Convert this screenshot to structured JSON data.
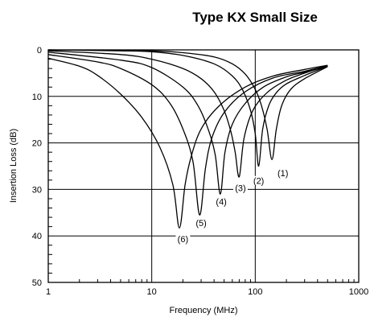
{
  "chart_data": {
    "type": "line",
    "title": "Type KX Small Size",
    "xlabel": "Frequency (MHz)",
    "ylabel": "Insertion Loss (dB)",
    "x_scale": "log",
    "xlim": [
      1,
      1000
    ],
    "ylim": [
      0,
      50
    ],
    "y_inverted": true,
    "grid": true,
    "x_ticks": [
      1,
      10,
      100,
      1000
    ],
    "x_tick_labels": [
      "1",
      "10",
      "100",
      "1000"
    ],
    "y_ticks": [
      0,
      10,
      20,
      30,
      40,
      50
    ],
    "y_tick_labels": [
      "0",
      "10",
      "20",
      "30",
      "40",
      "50"
    ],
    "series": [
      {
        "name": "(1)",
        "x": [
          1,
          5,
          10,
          20,
          40,
          60,
          80,
          100,
          115,
          130,
          145,
          160,
          180,
          220,
          300,
          500
        ],
        "y": [
          0.0,
          0.1,
          0.2,
          0.6,
          1.5,
          3.0,
          5.2,
          8.5,
          12.0,
          17.0,
          23.6,
          17.0,
          12.0,
          8.5,
          6.2,
          3.6
        ]
      },
      {
        "name": "(2)",
        "x": [
          1,
          5,
          10,
          20,
          40,
          60,
          75,
          90,
          100,
          108,
          118,
          135,
          160,
          200,
          300,
          500
        ],
        "y": [
          0.0,
          0.2,
          0.4,
          1.2,
          3.0,
          5.6,
          8.5,
          13.0,
          18.0,
          25.0,
          17.0,
          12.0,
          9.2,
          7.3,
          5.5,
          3.5
        ]
      },
      {
        "name": "(3)",
        "x": [
          1,
          5,
          10,
          20,
          30,
          40,
          50,
          58,
          64,
          70,
          78,
          95,
          130,
          200,
          300,
          500
        ],
        "y": [
          0.2,
          1.0,
          2.0,
          4.0,
          6.2,
          9.0,
          13.0,
          17.5,
          22.0,
          27.3,
          19.0,
          13.0,
          9.2,
          6.5,
          5.0,
          3.4
        ]
      },
      {
        "name": "(4)",
        "x": [
          1,
          5,
          10,
          20,
          28,
          35,
          41,
          46,
          51,
          60,
          80,
          120,
          200,
          300,
          500
        ],
        "y": [
          0.5,
          2.2,
          3.8,
          8.0,
          12.0,
          17.0,
          22.5,
          31.0,
          22.0,
          16.0,
          11.5,
          8.0,
          5.8,
          4.8,
          3.5
        ]
      },
      {
        "name": "(5)",
        "x": [
          1,
          3,
          5,
          10,
          15,
          20,
          25,
          29,
          33,
          38,
          50,
          80,
          150,
          300,
          500
        ],
        "y": [
          1.0,
          2.6,
          4.0,
          7.5,
          11.5,
          17.0,
          24.0,
          35.5,
          25.5,
          19.0,
          13.5,
          9.0,
          6.0,
          4.6,
          3.4
        ]
      },
      {
        "name": "(6)",
        "x": [
          1,
          2,
          3,
          5,
          8,
          12,
          16,
          18.5,
          21,
          24,
          30,
          45,
          80,
          150,
          300,
          500
        ],
        "y": [
          1.8,
          3.5,
          5.5,
          9.5,
          14.5,
          21.0,
          29.0,
          38.3,
          29.0,
          23.0,
          17.0,
          12.0,
          8.0,
          5.6,
          4.2,
          3.3
        ]
      }
    ],
    "curve_labels": [
      {
        "text": "(1)",
        "x": 185,
        "y": 26.8
      },
      {
        "text": "(2)",
        "x": 108,
        "y": 28.5
      },
      {
        "text": "(3)",
        "x": 72,
        "y": 30.0
      },
      {
        "text": "(4)",
        "x": 47,
        "y": 33.0
      },
      {
        "text": "(5)",
        "x": 30,
        "y": 37.5
      },
      {
        "text": "(6)",
        "x": 20,
        "y": 41.0
      }
    ]
  }
}
